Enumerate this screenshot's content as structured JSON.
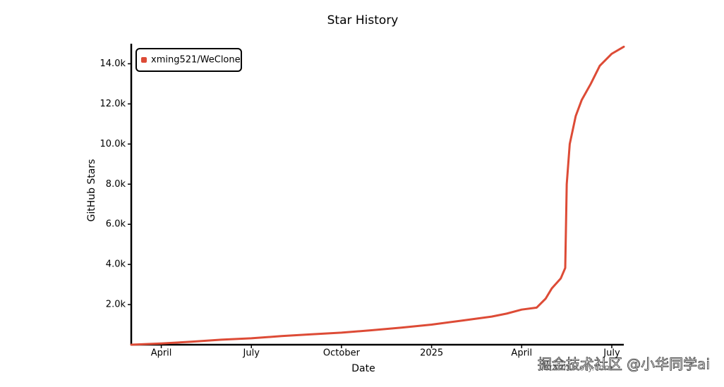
{
  "chart_data": {
    "type": "line",
    "title": "Star History",
    "x_label": "Date",
    "y_label": "GitHub Stars",
    "xlim": [
      3,
      19.4
    ],
    "xticks": [
      {
        "value": 4,
        "label": "April"
      },
      {
        "value": 7,
        "label": "July"
      },
      {
        "value": 10,
        "label": "October"
      },
      {
        "value": 13,
        "label": "2025"
      },
      {
        "value": 16,
        "label": "April"
      },
      {
        "value": 19,
        "label": "July"
      }
    ],
    "ylim": [
      0,
      15000
    ],
    "yticks": [
      {
        "value": 2000,
        "label": "2.0k"
      },
      {
        "value": 4000,
        "label": "4.0k"
      },
      {
        "value": 6000,
        "label": "6.0k"
      },
      {
        "value": 8000,
        "label": "8.0k"
      },
      {
        "value": 10000,
        "label": "10.0k"
      },
      {
        "value": 12000,
        "label": "12.0k"
      },
      {
        "value": 14000,
        "label": "14.0k"
      }
    ],
    "legend": "top-left",
    "series": [
      {
        "name": "xming521/WeClone",
        "color": "#dd4b36",
        "x": [
          3,
          4,
          5,
          6,
          7,
          8,
          9,
          10,
          11,
          12,
          13,
          14,
          15,
          15.5,
          16,
          16.5,
          16.8,
          17.0,
          17.3,
          17.45,
          17.5,
          17.6,
          17.8,
          18.0,
          18.3,
          18.6,
          19.0,
          19.4
        ],
        "values": [
          0,
          60,
          150,
          250,
          320,
          430,
          520,
          600,
          720,
          850,
          1000,
          1200,
          1400,
          1550,
          1750,
          1850,
          2300,
          2800,
          3300,
          3825,
          8000,
          10000,
          11400,
          12200,
          13000,
          13900,
          14500,
          14850
        ]
      }
    ],
    "watermark": "掘金技术社区 @小华同学ai",
    "source": "star-history.com"
  }
}
